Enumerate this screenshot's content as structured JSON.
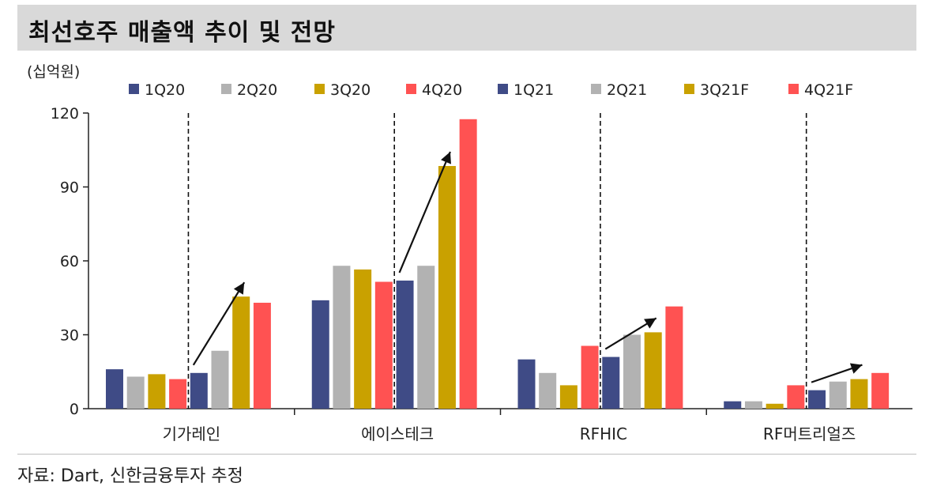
{
  "title": "최선호주 매출액 추이 및 전망",
  "source": "자료: Dart, 신한금융투자 추정",
  "chart_data": {
    "type": "bar",
    "unit_label": "(십억원)",
    "categories": [
      "기가레인",
      "에이스테크",
      "RFHIC",
      "RF머트리얼즈"
    ],
    "ylim": [
      0,
      120
    ],
    "yticks": [
      0,
      30,
      60,
      90,
      120
    ],
    "legend_position": "top",
    "series": [
      {
        "name": "1Q20",
        "color": "#3f4b86",
        "values": [
          16,
          44,
          20,
          3
        ]
      },
      {
        "name": "2Q20",
        "color": "#b2b2b2",
        "values": [
          13,
          58,
          14.5,
          3
        ]
      },
      {
        "name": "3Q20",
        "color": "#c9a100",
        "values": [
          14,
          56.5,
          9.5,
          2
        ]
      },
      {
        "name": "4Q20",
        "color": "#ff5252",
        "values": [
          12,
          51.5,
          25.5,
          9.5
        ]
      },
      {
        "name": "1Q21",
        "color": "#3f4b86",
        "values": [
          14.5,
          52,
          21,
          7.5
        ]
      },
      {
        "name": "2Q21",
        "color": "#b2b2b2",
        "values": [
          23.5,
          58,
          30,
          11
        ]
      },
      {
        "name": "3Q21F",
        "color": "#c9a100",
        "values": [
          45.5,
          98.5,
          31,
          12
        ]
      },
      {
        "name": "4Q21F",
        "color": "#ff5252",
        "values": [
          43,
          117.5,
          41.5,
          14.5
        ]
      }
    ],
    "divider_after_series": 3,
    "trend_arrows": true
  }
}
